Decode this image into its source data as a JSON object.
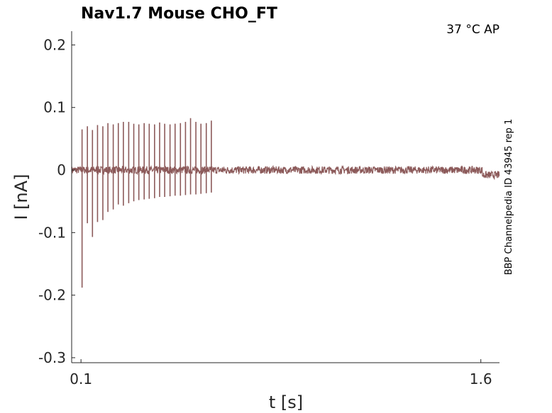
{
  "chart_data": {
    "type": "line",
    "title": "Nav1.7  Mouse  CHO_FT",
    "annotation_top_right": "37 °C  AP",
    "side_label": "BBP Channelpedia ID 43945 rep 1",
    "xlabel": "t [s]",
    "ylabel": "I [nA]",
    "xlim": [
      0.065,
      1.67
    ],
    "ylim": [
      -0.308,
      0.222
    ],
    "x_ticks": [
      0.1,
      1.6
    ],
    "x_tick_labels": [
      "0.1",
      "1.6"
    ],
    "y_ticks": [
      0.2,
      0.1,
      0,
      -0.1,
      -0.2,
      -0.3
    ],
    "y_tick_labels": [
      "0.2",
      "0.1",
      "0",
      "-0.1",
      "-0.2",
      "-0.3"
    ],
    "grid": false,
    "series": [
      {
        "color": "#8c5a5a",
        "baseline": 0.0,
        "baseline_after": -0.008,
        "baseline_shift_at": 1.605,
        "noise": 0.006,
        "spike_times": [
          0.104,
          0.124,
          0.143,
          0.162,
          0.182,
          0.201,
          0.221,
          0.24,
          0.259,
          0.279,
          0.298,
          0.317,
          0.337,
          0.356,
          0.376,
          0.395,
          0.414,
          0.434,
          0.453,
          0.473,
          0.492,
          0.511,
          0.531,
          0.55,
          0.57,
          0.589
        ],
        "spike_peaks": [
          0.065,
          0.07,
          0.064,
          0.072,
          0.07,
          0.075,
          0.073,
          0.075,
          0.077,
          0.077,
          0.074,
          0.073,
          0.075,
          0.074,
          0.073,
          0.076,
          0.074,
          0.073,
          0.074,
          0.075,
          0.077,
          0.083,
          0.077,
          0.074,
          0.075,
          0.079
        ],
        "spike_troughs": [
          -0.188,
          -0.085,
          -0.107,
          -0.083,
          -0.08,
          -0.067,
          -0.063,
          -0.055,
          -0.057,
          -0.053,
          -0.05,
          -0.048,
          -0.047,
          -0.046,
          -0.045,
          -0.043,
          -0.043,
          -0.042,
          -0.041,
          -0.041,
          -0.04,
          -0.039,
          -0.039,
          -0.038,
          -0.037,
          -0.036
        ]
      }
    ]
  }
}
